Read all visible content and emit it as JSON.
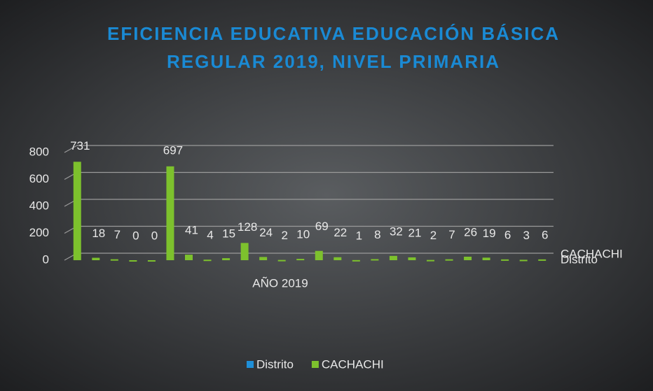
{
  "chart_data": {
    "type": "bar",
    "title": [
      "EFICIENCIA EDUCATIVA EDUCACIÓN BÁSICA",
      "REGULAR 2019, NIVEL PRIMARIA"
    ],
    "x_label": "AÑO 2019",
    "depth_labels": [
      "CACHACHI",
      "Distrito"
    ],
    "categories": [
      null,
      null,
      null,
      null,
      null,
      null,
      null,
      null,
      null,
      null,
      null,
      null,
      null,
      null,
      null,
      null,
      null,
      null,
      null,
      null,
      null,
      null,
      null,
      null,
      null,
      null
    ],
    "series": [
      {
        "name": "Distrito",
        "color": "#1f8fd8",
        "values": [
          null,
          null,
          null,
          null,
          null,
          null,
          null,
          null,
          null,
          null,
          null,
          null,
          null,
          null,
          null,
          null,
          null,
          null,
          null,
          null,
          null,
          null,
          null,
          null,
          null,
          null
        ]
      },
      {
        "name": "CACHACHI",
        "color": "#7dc12d",
        "values": [
          731,
          18,
          7,
          0,
          0,
          697,
          41,
          4,
          15,
          128,
          24,
          2,
          10,
          69,
          22,
          1,
          8,
          32,
          21,
          2,
          7,
          26,
          19,
          6,
          3,
          6
        ]
      }
    ],
    "ylim": [
      0,
      800
    ],
    "yticks": [
      0,
      200,
      400,
      600,
      800
    ],
    "grid": true,
    "legend": "bottom"
  }
}
